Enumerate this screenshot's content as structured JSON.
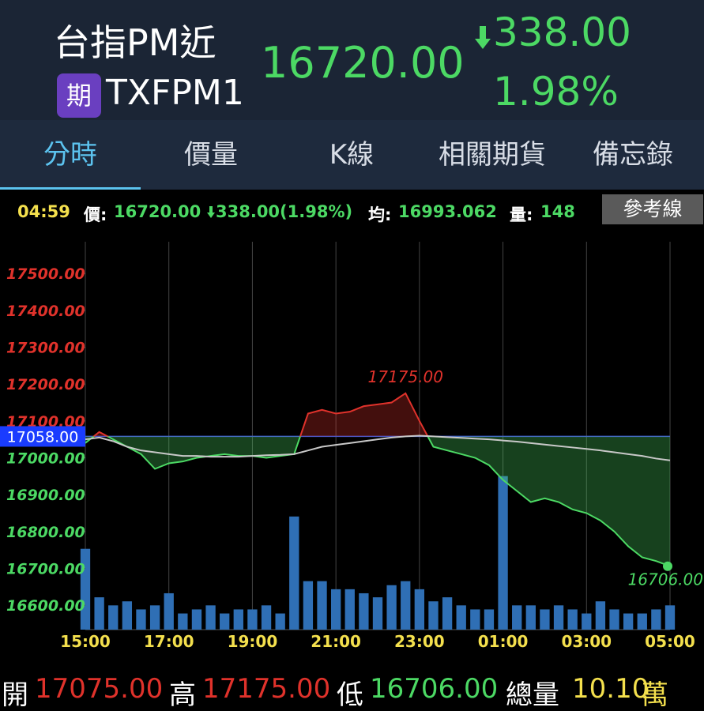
{
  "header": {
    "title": "台指PM近",
    "badge": "期",
    "code": "TXFPM1",
    "price": "16720.00",
    "change": "338.00",
    "change_pct": "1.98%"
  },
  "tabs": [
    "分時",
    "價量",
    "K線",
    "相關期貨",
    "備忘錄"
  ],
  "info_bar": {
    "time": "04:59",
    "price_label": "價:",
    "price": "16720.00",
    "change": "338.00(1.98%)",
    "avg_label": "均:",
    "avg": "16993.062",
    "volume_label": "量:",
    "volume": "148",
    "button": "參考線"
  },
  "chart_data": {
    "type": "line",
    "categories": [
      "15:00",
      null,
      null,
      null,
      null,
      null,
      "17:00",
      null,
      null,
      null,
      null,
      null,
      "19:00",
      null,
      null,
      null,
      null,
      null,
      "21:00",
      null,
      null,
      null,
      null,
      null,
      "23:00",
      null,
      null,
      null,
      null,
      null,
      "01:00",
      null,
      null,
      null,
      null,
      null,
      "03:00",
      null,
      null,
      null,
      null,
      null,
      "05:00"
    ],
    "series": [
      {
        "name": "價",
        "color": "#4cd964",
        "values": [
          17040,
          17070,
          17050,
          17030,
          17010,
          16970,
          16985,
          16990,
          17000,
          17005,
          17010,
          17005,
          17005,
          17000,
          17005,
          17010,
          17120,
          17130,
          17120,
          17125,
          17140,
          17145,
          17150,
          17175,
          17100,
          17030,
          17020,
          17010,
          17000,
          16980,
          16940,
          16910,
          16880,
          16890,
          16880,
          16860,
          16850,
          16830,
          16800,
          16760,
          16730,
          16720,
          16706
        ]
      },
      {
        "name": "均",
        "color": "#c8c8c8",
        "values": [
          17050,
          17055,
          17045,
          17030,
          17020,
          17015,
          17010,
          17005,
          17005,
          17003,
          17003,
          17003,
          17005,
          17007,
          17008,
          17010,
          17020,
          17030,
          17035,
          17040,
          17045,
          17050,
          17055,
          17058,
          17060,
          17058,
          17056,
          17054,
          17052,
          17050,
          17047,
          17044,
          17040,
          17036,
          17032,
          17028,
          17024,
          17020,
          17015,
          17010,
          17005,
          16998,
          16993
        ]
      },
      {
        "name": "量",
        "color": "#2f6fb5",
        "axis": "y2",
        "type": "bar",
        "values": [
          100,
          40,
          30,
          35,
          25,
          30,
          45,
          20,
          25,
          30,
          20,
          25,
          25,
          30,
          20,
          140,
          60,
          60,
          50,
          50,
          45,
          40,
          55,
          60,
          50,
          35,
          40,
          30,
          25,
          25,
          190,
          30,
          30,
          25,
          30,
          25,
          20,
          35,
          25,
          20,
          20,
          25,
          30
        ]
      }
    ],
    "ylim": [
      16534,
      17586
    ],
    "yticks": [
      {
        "value": 16600,
        "label": "16600.00"
      },
      {
        "value": 16700,
        "label": "16700.00"
      },
      {
        "value": 16800,
        "label": "16800.00"
      },
      {
        "value": 16900,
        "label": "16900.00"
      },
      {
        "value": 17000,
        "label": "17000.00"
      },
      {
        "value": 17100,
        "label": "17100.00"
      },
      {
        "value": 17200,
        "label": "17200.00"
      },
      {
        "value": 17300,
        "label": "17300.00"
      },
      {
        "value": 17400,
        "label": "17400.00"
      },
      {
        "value": 17500,
        "label": "17500.00"
      }
    ],
    "y2lim": [
      0,
      480
    ],
    "reference": {
      "value": 17058,
      "label": "17058.00"
    },
    "annotations": [
      {
        "value": 17175,
        "label": "17175.00"
      },
      {
        "value": 16706,
        "label": "16706.00"
      }
    ],
    "up_color": "#e0322b",
    "down_color": "#4cd964",
    "grid": true
  },
  "summary": {
    "open_label": "開",
    "open": "17075.00",
    "high_label": "高",
    "high": "17175.00",
    "low_label": "低",
    "low": "16706.00",
    "volume_label": "總量",
    "volume": "10.10",
    "volume_unit": "萬"
  }
}
